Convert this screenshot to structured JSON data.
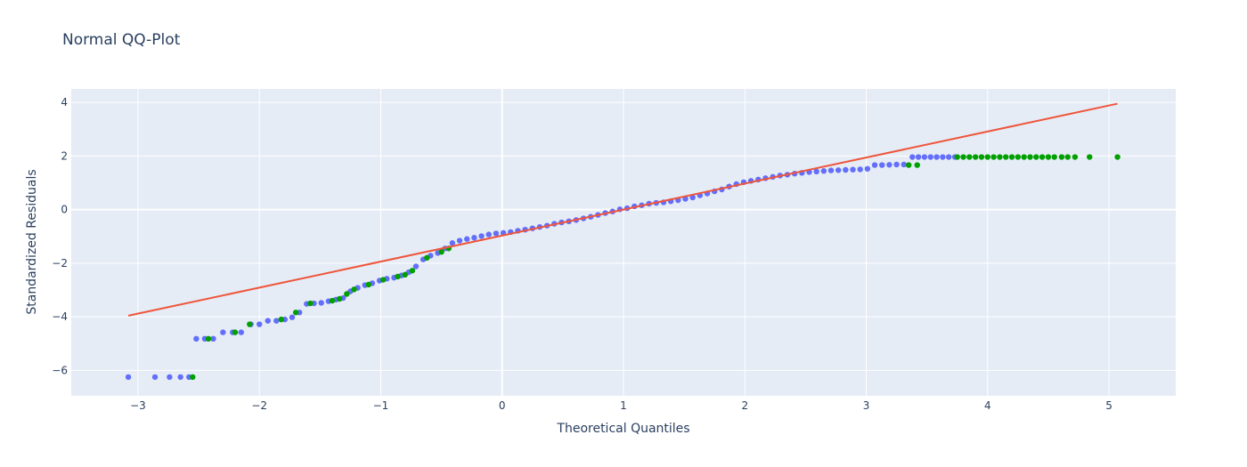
{
  "chart_data": {
    "type": "scatter",
    "title": "Normal QQ-Plot",
    "xlabel": "Theoretical Quantiles",
    "ylabel": "Standardized Residuals",
    "xlim": [
      -3.55,
      5.55
    ],
    "ylim": [
      -6.95,
      4.5
    ],
    "x_ticks": [
      -3,
      -2,
      -1,
      0,
      1,
      2,
      3,
      4,
      5
    ],
    "x_tick_labels": [
      "−3",
      "−2",
      "−1",
      "0",
      "1",
      "2",
      "3",
      "4",
      "5"
    ],
    "y_ticks": [
      -6,
      -4,
      -2,
      0,
      2,
      4
    ],
    "y_tick_labels": [
      "−6",
      "−4",
      "−2",
      "0",
      "2",
      "4"
    ],
    "grid": true,
    "legend": "none",
    "plot_background": "#E5ECF6",
    "series": [
      {
        "color": "#636EFA",
        "marker": "points",
        "values": [
          [
            -3.08,
            -6.25
          ],
          [
            -2.86,
            -6.25
          ],
          [
            -2.74,
            -6.25
          ],
          [
            -2.65,
            -6.25
          ],
          [
            -2.58,
            -6.25
          ],
          [
            -2.52,
            -4.82
          ],
          [
            -2.45,
            -4.82
          ],
          [
            -2.38,
            -4.82
          ],
          [
            -2.3,
            -4.58
          ],
          [
            -2.22,
            -4.58
          ],
          [
            -2.15,
            -4.58
          ],
          [
            -2.07,
            -4.28
          ],
          [
            -2.0,
            -4.28
          ],
          [
            -1.93,
            -4.15
          ],
          [
            -1.86,
            -4.15
          ],
          [
            -1.79,
            -4.1
          ],
          [
            -1.73,
            -4.02
          ],
          [
            -1.67,
            -3.84
          ],
          [
            -1.61,
            -3.52
          ],
          [
            -1.55,
            -3.5
          ],
          [
            -1.49,
            -3.48
          ],
          [
            -1.43,
            -3.42
          ],
          [
            -1.37,
            -3.36
          ],
          [
            -1.31,
            -3.3
          ],
          [
            -1.25,
            -3.05
          ],
          [
            -1.19,
            -2.92
          ],
          [
            -1.13,
            -2.82
          ],
          [
            -1.07,
            -2.75
          ],
          [
            -1.01,
            -2.65
          ],
          [
            -0.95,
            -2.58
          ],
          [
            -0.89,
            -2.54
          ],
          [
            -0.83,
            -2.46
          ],
          [
            -0.77,
            -2.34
          ],
          [
            -0.71,
            -2.12
          ],
          [
            -0.65,
            -1.86
          ],
          [
            -0.59,
            -1.72
          ],
          [
            -0.53,
            -1.62
          ],
          [
            -0.47,
            -1.45
          ],
          [
            -0.41,
            -1.25
          ],
          [
            -0.35,
            -1.16
          ],
          [
            -0.29,
            -1.1
          ],
          [
            -0.23,
            -1.05
          ],
          [
            -0.17,
            -0.99
          ],
          [
            -0.11,
            -0.93
          ],
          [
            -0.05,
            -0.89
          ],
          [
            0.01,
            -0.87
          ],
          [
            0.07,
            -0.84
          ],
          [
            0.13,
            -0.79
          ],
          [
            0.19,
            -0.75
          ],
          [
            0.25,
            -0.7
          ],
          [
            0.31,
            -0.65
          ],
          [
            0.37,
            -0.6
          ],
          [
            0.43,
            -0.53
          ],
          [
            0.49,
            -0.48
          ],
          [
            0.55,
            -0.44
          ],
          [
            0.61,
            -0.39
          ],
          [
            0.67,
            -0.33
          ],
          [
            0.73,
            -0.27
          ],
          [
            0.79,
            -0.2
          ],
          [
            0.85,
            -0.13
          ],
          [
            0.91,
            -0.07
          ],
          [
            0.97,
            0.01
          ],
          [
            1.03,
            0.05
          ],
          [
            1.09,
            0.12
          ],
          [
            1.15,
            0.16
          ],
          [
            1.21,
            0.22
          ],
          [
            1.27,
            0.25
          ],
          [
            1.33,
            0.27
          ],
          [
            1.39,
            0.31
          ],
          [
            1.45,
            0.35
          ],
          [
            1.51,
            0.4
          ],
          [
            1.57,
            0.45
          ],
          [
            1.63,
            0.53
          ],
          [
            1.69,
            0.6
          ],
          [
            1.75,
            0.68
          ],
          [
            1.81,
            0.75
          ],
          [
            1.87,
            0.86
          ],
          [
            1.93,
            0.95
          ],
          [
            1.99,
            1.02
          ],
          [
            2.05,
            1.07
          ],
          [
            2.11,
            1.12
          ],
          [
            2.17,
            1.17
          ],
          [
            2.23,
            1.22
          ],
          [
            2.29,
            1.27
          ],
          [
            2.35,
            1.3
          ],
          [
            2.41,
            1.34
          ],
          [
            2.47,
            1.37
          ],
          [
            2.53,
            1.4
          ],
          [
            2.59,
            1.42
          ],
          [
            2.65,
            1.44
          ],
          [
            2.71,
            1.46
          ],
          [
            2.77,
            1.47
          ],
          [
            2.83,
            1.48
          ],
          [
            2.89,
            1.49
          ],
          [
            2.95,
            1.5
          ],
          [
            3.01,
            1.52
          ],
          [
            3.07,
            1.66
          ],
          [
            3.13,
            1.66
          ],
          [
            3.19,
            1.67
          ],
          [
            3.25,
            1.68
          ],
          [
            3.31,
            1.68
          ],
          [
            3.38,
            1.96
          ],
          [
            3.43,
            1.96
          ],
          [
            3.48,
            1.96
          ],
          [
            3.53,
            1.96
          ],
          [
            3.58,
            1.96
          ],
          [
            3.63,
            1.96
          ],
          [
            3.68,
            1.96
          ],
          [
            3.73,
            1.96
          ]
        ]
      },
      {
        "color": "#00A000",
        "marker": "points",
        "values": [
          [
            -2.55,
            -6.25
          ],
          [
            -2.42,
            -4.82
          ],
          [
            -2.2,
            -4.58
          ],
          [
            -2.08,
            -4.28
          ],
          [
            -1.82,
            -4.1
          ],
          [
            -1.7,
            -3.84
          ],
          [
            -1.58,
            -3.5
          ],
          [
            -1.4,
            -3.4
          ],
          [
            -1.34,
            -3.33
          ],
          [
            -1.28,
            -3.15
          ],
          [
            -1.22,
            -2.98
          ],
          [
            -1.1,
            -2.8
          ],
          [
            -0.98,
            -2.62
          ],
          [
            -0.86,
            -2.5
          ],
          [
            -0.8,
            -2.43
          ],
          [
            -0.74,
            -2.28
          ],
          [
            -0.62,
            -1.8
          ],
          [
            -0.5,
            -1.58
          ],
          [
            -0.44,
            -1.45
          ],
          [
            3.42,
            1.66
          ],
          [
            3.35,
            1.66
          ],
          [
            3.75,
            1.96
          ],
          [
            3.8,
            1.96
          ],
          [
            3.85,
            1.96
          ],
          [
            3.9,
            1.96
          ],
          [
            3.95,
            1.96
          ],
          [
            4.0,
            1.96
          ],
          [
            4.05,
            1.96
          ],
          [
            4.1,
            1.96
          ],
          [
            4.15,
            1.96
          ],
          [
            4.2,
            1.96
          ],
          [
            4.25,
            1.96
          ],
          [
            4.3,
            1.96
          ],
          [
            4.35,
            1.96
          ],
          [
            4.4,
            1.96
          ],
          [
            4.45,
            1.96
          ],
          [
            4.5,
            1.96
          ],
          [
            4.55,
            1.96
          ],
          [
            4.61,
            1.96
          ],
          [
            4.66,
            1.96
          ],
          [
            4.72,
            1.96
          ],
          [
            4.84,
            1.96
          ],
          [
            5.07,
            1.96
          ]
        ]
      },
      {
        "color": "#EF553B",
        "marker": "line",
        "values": [
          [
            -3.08,
            -3.96
          ],
          [
            5.07,
            3.95
          ]
        ]
      }
    ]
  }
}
